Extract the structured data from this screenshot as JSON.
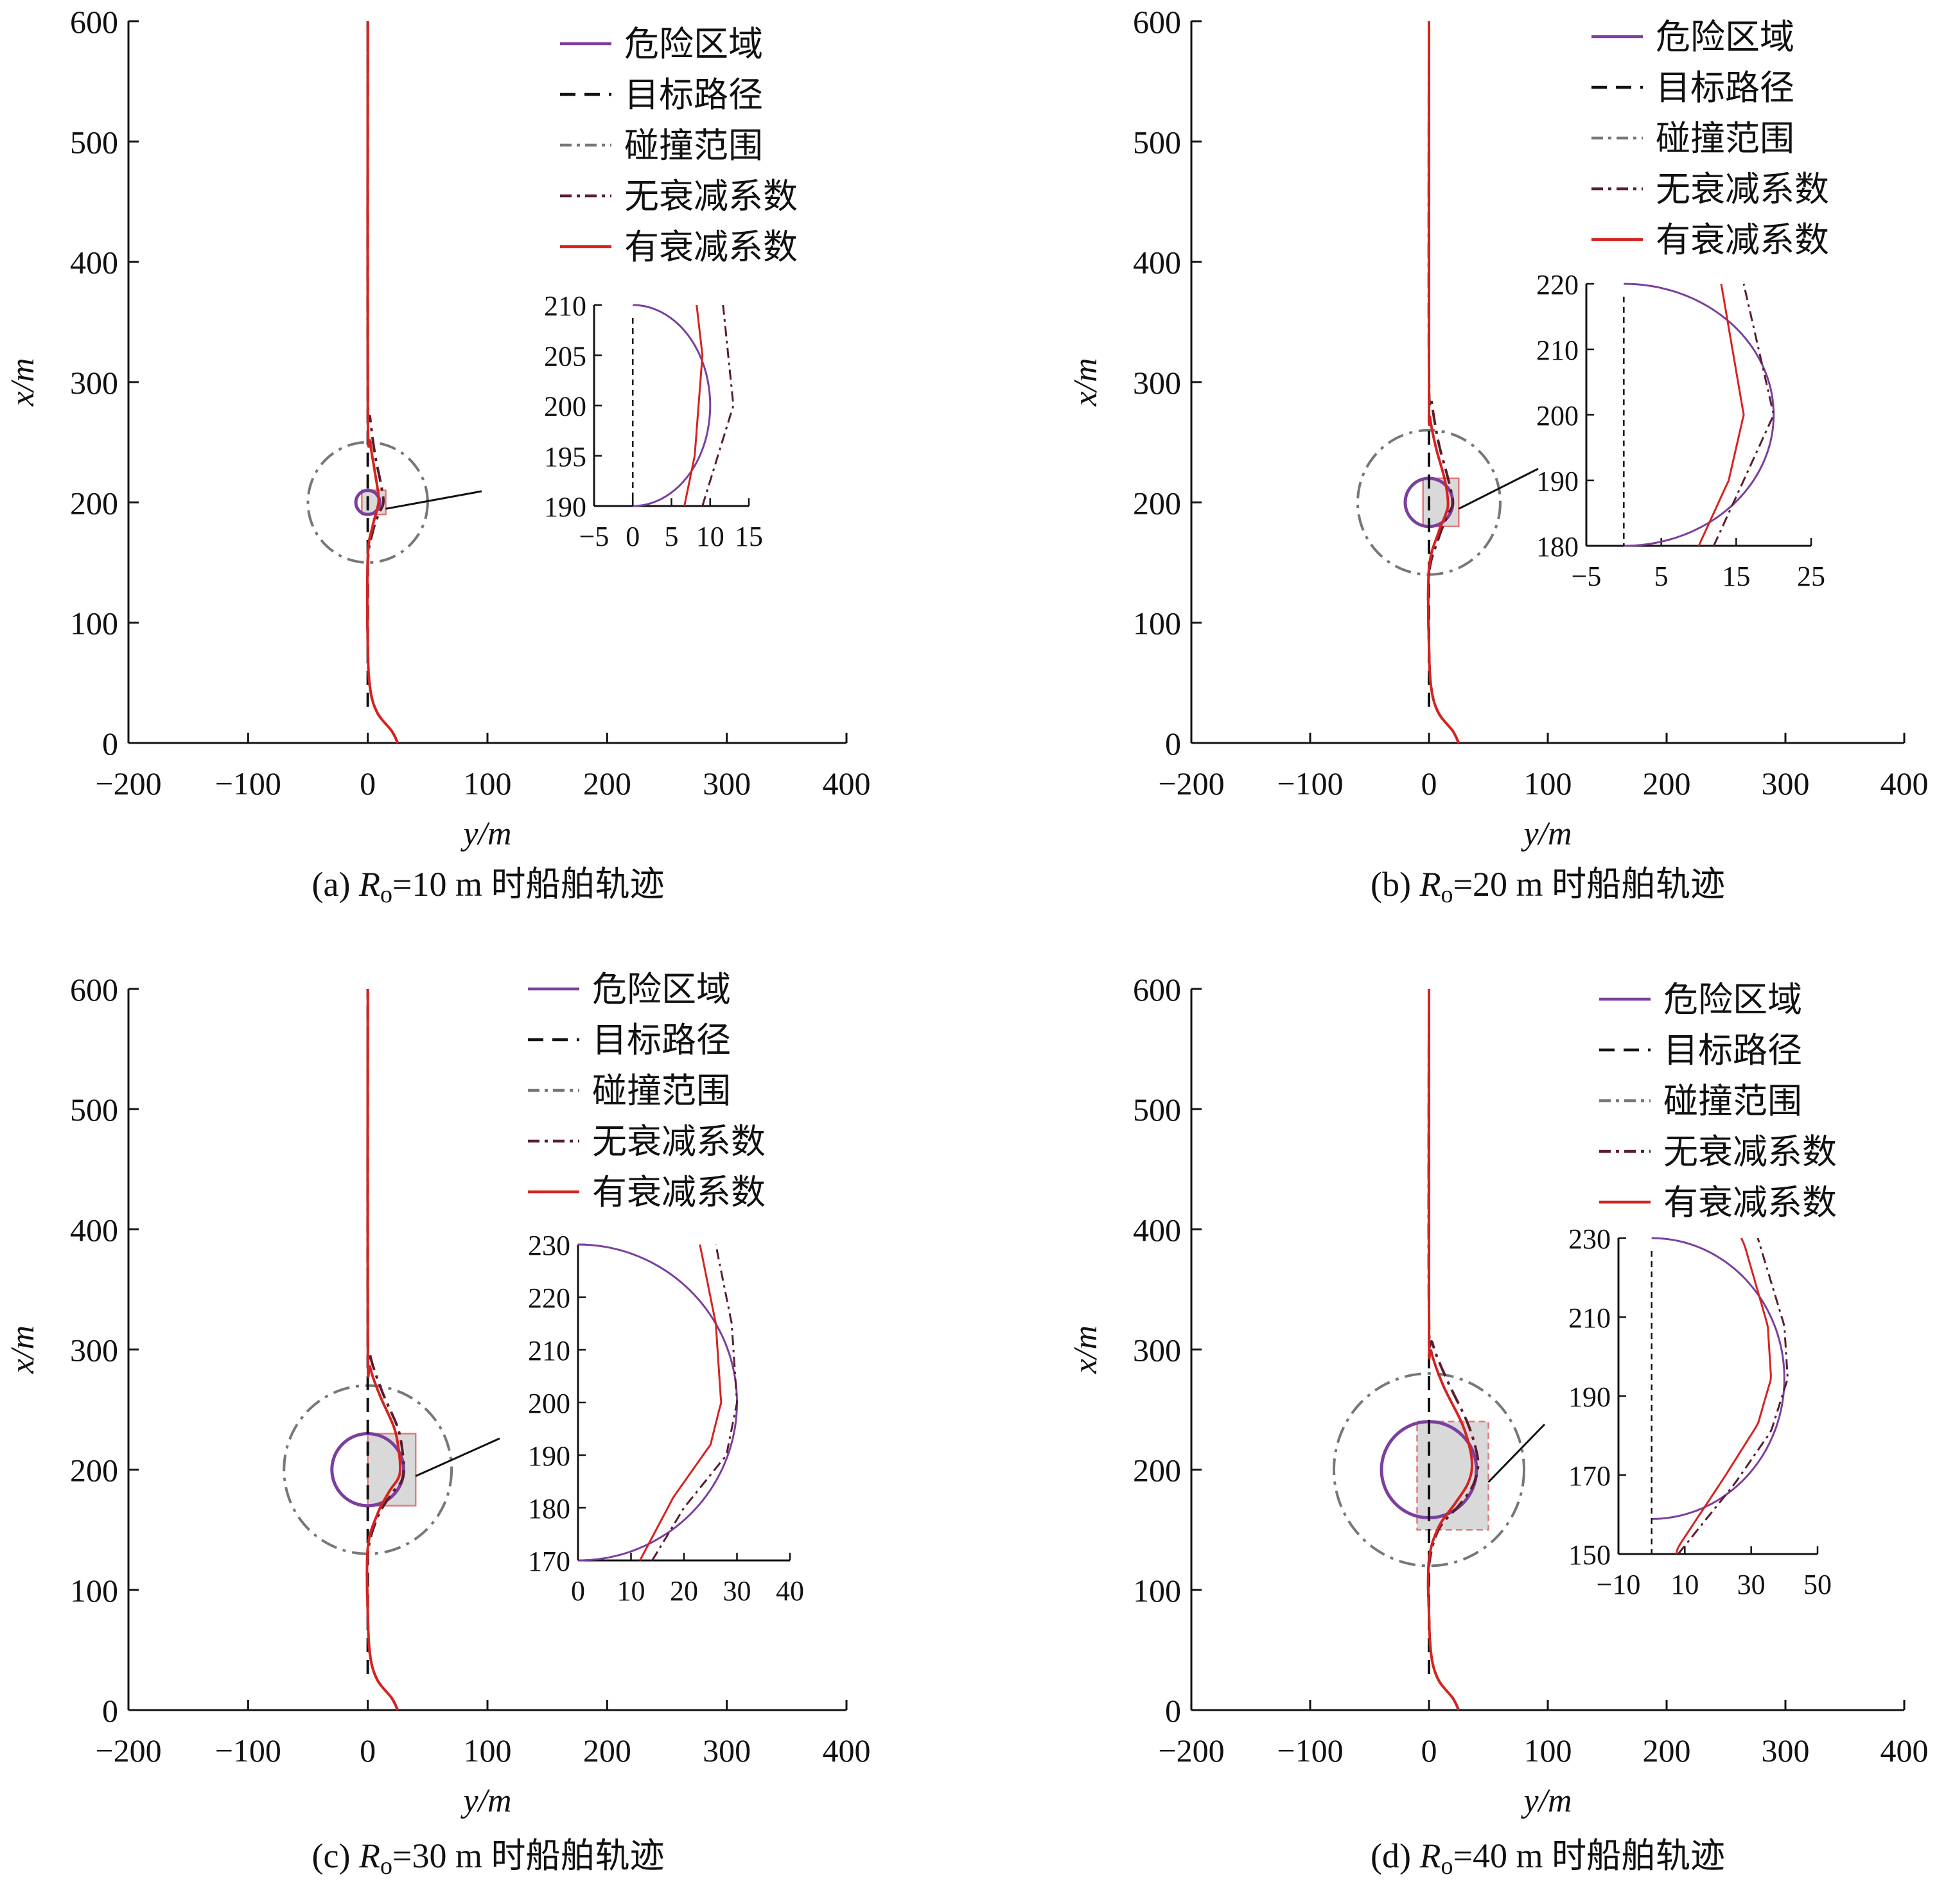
{
  "colors": {
    "danger": "#7b3f9e",
    "target": "#111111",
    "collision": "#777777",
    "no_decay": "#5a1d2e",
    "with_decay": "#d6231f",
    "zoom_fill": "#d9d9d9",
    "zoom_edge": "#e07a7a"
  },
  "chart_data": [
    {
      "type": "line",
      "caption": {
        "prefix": "(a)",
        "ro_value": "10",
        "suffix": "m 时船舶轨迹"
      },
      "xlabel": "y/m",
      "ylabel": "x/m",
      "xlim": [
        -200,
        400
      ],
      "ylim": [
        0,
        600
      ],
      "xticks": [
        "−200",
        "−100",
        "0",
        "100",
        "200",
        "300",
        "400"
      ],
      "yticks": [
        "0",
        "100",
        "200",
        "300",
        "400",
        "500",
        "600"
      ],
      "legend": [
        "危险区域",
        "目标路径",
        "碰撞范围",
        "无衰减系数",
        "有衰减系数"
      ],
      "legend_position": "top-right",
      "obstacle": {
        "center_y": 0,
        "center_x": 200,
        "radius": 10,
        "collision_radius": 50
      },
      "series": [
        {
          "name": "无衰减系数",
          "points": [
            [
              25,
              0
            ],
            [
              20,
              10
            ],
            [
              8,
              25
            ],
            [
              2,
              45
            ],
            [
              0,
              80
            ],
            [
              0,
              150
            ],
            [
              4,
              175
            ],
            [
              9,
              190
            ],
            [
              13,
              200
            ],
            [
              11,
              215
            ],
            [
              6,
              240
            ],
            [
              2,
              270
            ],
            [
              0,
              300
            ],
            [
              0,
              600
            ]
          ]
        },
        {
          "name": "有衰减系数",
          "points": [
            [
              25,
              0
            ],
            [
              20,
              10
            ],
            [
              8,
              25
            ],
            [
              2,
              45
            ],
            [
              0,
              80
            ],
            [
              0,
              155
            ],
            [
              4,
              180
            ],
            [
              8,
              195
            ],
            [
              9,
              205
            ],
            [
              6,
              225
            ],
            [
              2,
              250
            ],
            [
              0,
              280
            ],
            [
              0,
              600
            ]
          ]
        }
      ],
      "inset": {
        "xlim": [
          -5,
          15
        ],
        "ylim": [
          190,
          210
        ],
        "xticks": [
          "−5",
          "0",
          "5",
          "10",
          "15"
        ],
        "yticks": [
          "190",
          "195",
          "200",
          "205",
          "210"
        ]
      }
    },
    {
      "type": "line",
      "caption": {
        "prefix": "(b)",
        "ro_value": "20",
        "suffix": "m 时船舶轨迹"
      },
      "xlabel": "y/m",
      "ylabel": "x/m",
      "xlim": [
        -200,
        400
      ],
      "ylim": [
        0,
        600
      ],
      "xticks": [
        "−200",
        "−100",
        "0",
        "100",
        "200",
        "300",
        "400"
      ],
      "yticks": [
        "0",
        "100",
        "200",
        "300",
        "400",
        "500",
        "600"
      ],
      "legend": [
        "危险区域",
        "目标路径",
        "碰撞范围",
        "无衰减系数",
        "有衰减系数"
      ],
      "legend_position": "top-right",
      "obstacle": {
        "center_y": 0,
        "center_x": 200,
        "radius": 20,
        "collision_radius": 60
      },
      "series": [
        {
          "name": "无衰减系数",
          "points": [
            [
              25,
              0
            ],
            [
              20,
              10
            ],
            [
              8,
              25
            ],
            [
              2,
              45
            ],
            [
              0,
              80
            ],
            [
              0,
              140
            ],
            [
              8,
              170
            ],
            [
              16,
              190
            ],
            [
              20,
              200
            ],
            [
              16,
              220
            ],
            [
              8,
              250
            ],
            [
              2,
              285
            ],
            [
              0,
              310
            ],
            [
              0,
              600
            ]
          ]
        },
        {
          "name": "有衰减系数",
          "points": [
            [
              25,
              0
            ],
            [
              20,
              10
            ],
            [
              8,
              25
            ],
            [
              2,
              45
            ],
            [
              0,
              80
            ],
            [
              0,
              145
            ],
            [
              8,
              175
            ],
            [
              14,
              190
            ],
            [
              16,
              200
            ],
            [
              13,
              220
            ],
            [
              6,
              245
            ],
            [
              1,
              270
            ],
            [
              0,
              295
            ],
            [
              0,
              600
            ]
          ]
        }
      ],
      "inset": {
        "xlim": [
          -5,
          25
        ],
        "ylim": [
          180,
          220
        ],
        "xticks": [
          "−5",
          "5",
          "15",
          "25"
        ],
        "yticks": [
          "180",
          "190",
          "200",
          "210",
          "220"
        ]
      }
    },
    {
      "type": "line",
      "caption": {
        "prefix": "(c)",
        "ro_value": "30",
        "suffix": "m 时船舶轨迹"
      },
      "xlabel": "y/m",
      "ylabel": "x/m",
      "xlim": [
        -200,
        400
      ],
      "ylim": [
        0,
        600
      ],
      "xticks": [
        "−200",
        "−100",
        "0",
        "100",
        "200",
        "300",
        "400"
      ],
      "yticks": [
        "0",
        "100",
        "200",
        "300",
        "400",
        "500",
        "600"
      ],
      "legend": [
        "危险区域",
        "目标路径",
        "碰撞范围",
        "无衰减系数",
        "有衰减系数"
      ],
      "legend_position": "top-right",
      "obstacle": {
        "center_y": 0,
        "center_x": 200,
        "radius": 30,
        "collision_radius": 70
      },
      "series": [
        {
          "name": "无衰减系数",
          "points": [
            [
              25,
              0
            ],
            [
              20,
              10
            ],
            [
              8,
              25
            ],
            [
              2,
              45
            ],
            [
              0,
              80
            ],
            [
              0,
              130
            ],
            [
              8,
              160
            ],
            [
              20,
              180
            ],
            [
              28,
              190
            ],
            [
              30,
              200
            ],
            [
              29,
              215
            ],
            [
              25,
              235
            ],
            [
              12,
              265
            ],
            [
              2,
              295
            ],
            [
              0,
              320
            ],
            [
              0,
              600
            ]
          ]
        },
        {
          "name": "有衰减系数",
          "points": [
            [
              25,
              0
            ],
            [
              20,
              10
            ],
            [
              8,
              25
            ],
            [
              2,
              45
            ],
            [
              0,
              80
            ],
            [
              0,
              135
            ],
            [
              8,
              163
            ],
            [
              18,
              182
            ],
            [
              25,
              192
            ],
            [
              27,
              200
            ],
            [
              26,
              215
            ],
            [
              22,
              235
            ],
            [
              10,
              262
            ],
            [
              2,
              285
            ],
            [
              0,
              305
            ],
            [
              0,
              600
            ]
          ]
        }
      ],
      "inset": {
        "xlim": [
          0,
          40
        ],
        "ylim": [
          170,
          230
        ],
        "xticks": [
          "0",
          "10",
          "20",
          "30",
          "40"
        ],
        "yticks": [
          "170",
          "180",
          "190",
          "200",
          "210",
          "220",
          "230"
        ]
      }
    },
    {
      "type": "line",
      "caption": {
        "prefix": "(d)",
        "ro_value": "40",
        "suffix": "m 时船舶轨迹"
      },
      "xlabel": "y/m",
      "ylabel": "x/m",
      "xlim": [
        -200,
        400
      ],
      "ylim": [
        0,
        600
      ],
      "xticks": [
        "−200",
        "−100",
        "0",
        "100",
        "200",
        "300",
        "400"
      ],
      "yticks": [
        "0",
        "100",
        "200",
        "300",
        "400",
        "500",
        "600"
      ],
      "legend": [
        "危险区域",
        "目标路径",
        "碰撞范围",
        "无衰减系数",
        "有衰减系数"
      ],
      "legend_position": "top-right",
      "obstacle": {
        "center_y": 0,
        "center_x": 200,
        "radius": 40,
        "collision_radius": 80
      },
      "series": [
        {
          "name": "无衰减系数",
          "points": [
            [
              25,
              0
            ],
            [
              20,
              10
            ],
            [
              8,
              25
            ],
            [
              2,
              45
            ],
            [
              0,
              80
            ],
            [
              0,
              120
            ],
            [
              8,
              150
            ],
            [
              25,
              170
            ],
            [
              36,
              185
            ],
            [
              41,
              200
            ],
            [
              40,
              215
            ],
            [
              32,
              240
            ],
            [
              15,
              275
            ],
            [
              3,
              305
            ],
            [
              0,
              330
            ],
            [
              0,
              600
            ]
          ]
        },
        {
          "name": "有衰减系数",
          "points": [
            [
              25,
              0
            ],
            [
              20,
              10
            ],
            [
              8,
              25
            ],
            [
              2,
              45
            ],
            [
              0,
              80
            ],
            [
              0,
              125
            ],
            [
              8,
              152
            ],
            [
              22,
              172
            ],
            [
              32,
              187
            ],
            [
              36,
              200
            ],
            [
              35,
              215
            ],
            [
              28,
              238
            ],
            [
              12,
              270
            ],
            [
              2,
              298
            ],
            [
              0,
              320
            ],
            [
              0,
              600
            ]
          ]
        }
      ],
      "inset": {
        "xlim": [
          -10,
          50
        ],
        "ylim": [
          150,
          240
        ],
        "xticks": [
          "−10",
          "10",
          "30",
          "50"
        ],
        "yticks": [
          "150",
          "170",
          "190",
          "210",
          "230"
        ]
      }
    }
  ]
}
